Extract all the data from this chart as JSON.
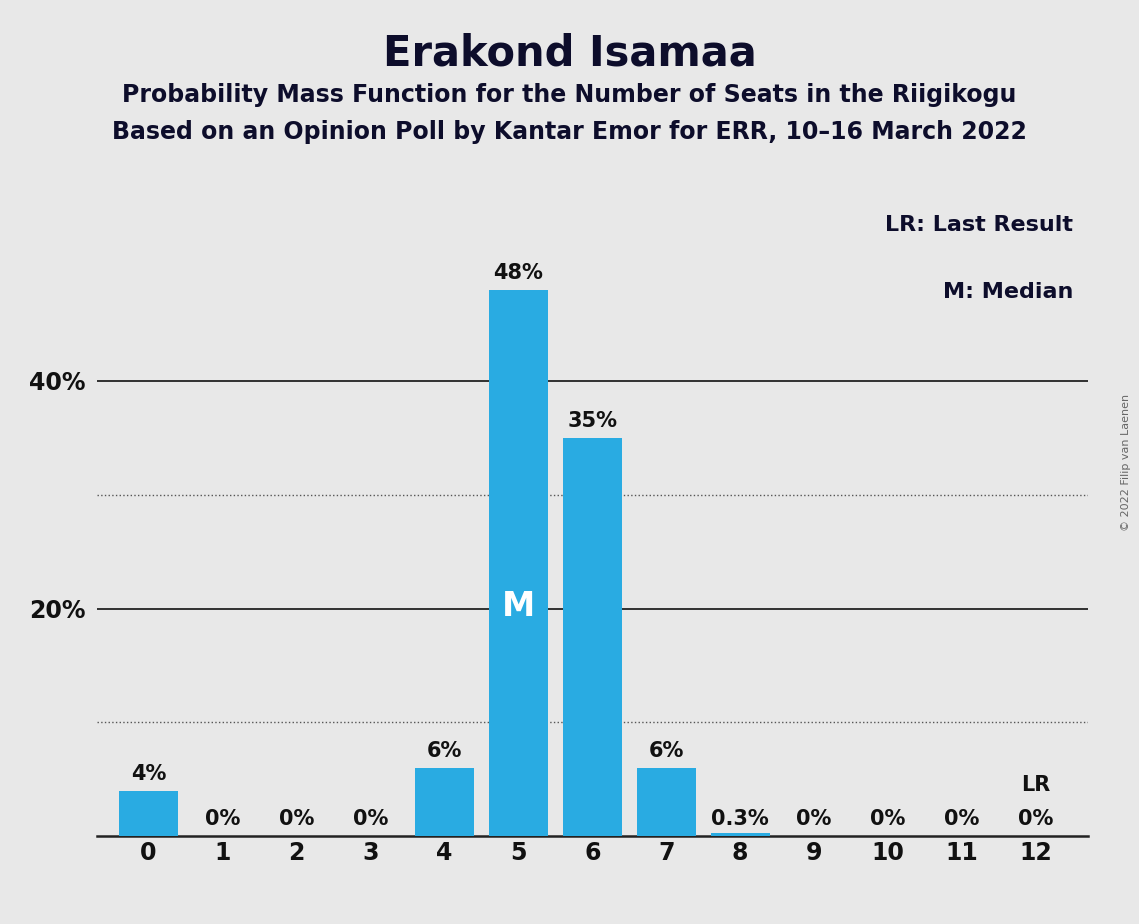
{
  "title": "Erakond Isamaa",
  "subtitle1": "Probability Mass Function for the Number of Seats in the Riigikogu",
  "subtitle2": "Based on an Opinion Poll by Kantar Emor for ERR, 10–16 March 2022",
  "copyright": "© 2022 Filip van Laenen",
  "seats": [
    0,
    1,
    2,
    3,
    4,
    5,
    6,
    7,
    8,
    9,
    10,
    11,
    12
  ],
  "probabilities": [
    0.04,
    0.0,
    0.0,
    0.0,
    0.06,
    0.48,
    0.35,
    0.06,
    0.003,
    0.0,
    0.0,
    0.0,
    0.0
  ],
  "bar_labels": [
    "4%",
    "0%",
    "0%",
    "0%",
    "6%",
    "48%",
    "35%",
    "6%",
    "0.3%",
    "0%",
    "0%",
    "0%",
    "0%"
  ],
  "median_seat": 5,
  "last_result_seat": 12,
  "bar_color": "#29ABE2",
  "bg_color": "#E8E8E8",
  "plot_bg_color": "#E8E8E8",
  "solid_grid_color": "#222222",
  "dotted_grid_color": "#555555",
  "solid_grid_values": [
    0.2,
    0.4
  ],
  "dotted_grid_values": [
    0.1,
    0.3
  ],
  "ylim": [
    0,
    0.56
  ],
  "yticks": [
    0.2,
    0.4
  ],
  "ytick_labels": [
    "20%",
    "40%"
  ],
  "title_fontsize": 30,
  "subtitle_fontsize": 17,
  "label_fontsize": 15,
  "tick_fontsize": 17,
  "legend_fontsize": 16,
  "m_fontsize": 24,
  "lr_label_fontsize": 15,
  "copyright_fontsize": 8
}
